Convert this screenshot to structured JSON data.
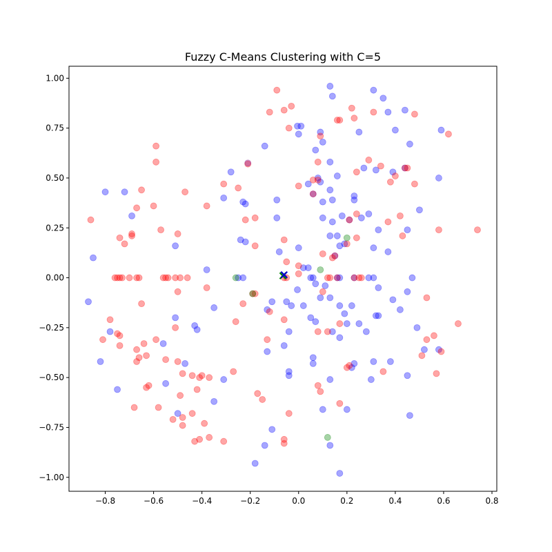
{
  "chart_data": {
    "type": "scatter",
    "title": "Fuzzy C-Means Clustering with C=5",
    "xlabel": "",
    "ylabel": "",
    "xlim": [
      -0.95,
      0.82
    ],
    "ylim": [
      -1.07,
      1.06
    ],
    "xticks": [
      -0.8,
      -0.6,
      -0.4,
      -0.2,
      0.0,
      0.2,
      0.4,
      0.6,
      0.8
    ],
    "yticks": [
      -1.0,
      -0.75,
      -0.5,
      -0.25,
      0.0,
      0.25,
      0.5,
      0.75,
      1.0
    ],
    "xtick_labels": [
      "−0.8",
      "−0.6",
      "−0.4",
      "−0.2",
      "0.0",
      "0.2",
      "0.4",
      "0.6",
      "0.8"
    ],
    "ytick_labels": [
      "−1.00",
      "−0.75",
      "−0.50",
      "−0.25",
      "0.00",
      "0.25",
      "0.50",
      "0.75",
      "1.00"
    ],
    "grid": false,
    "legend": "none",
    "series": [
      {
        "color": "#0000ff",
        "alpha": 0.35,
        "points": [
          [
            0.13,
            0.96
          ],
          [
            0.31,
            0.94
          ],
          [
            0.35,
            0.9
          ],
          [
            0.14,
            0.91
          ],
          [
            0.44,
            0.84
          ],
          [
            0.37,
            0.83
          ],
          [
            -0.005,
            0.76
          ],
          [
            0.01,
            0.76
          ],
          [
            0.09,
            0.73
          ],
          [
            0.25,
            0.73
          ],
          [
            0.4,
            0.74
          ],
          [
            0.59,
            0.74
          ],
          [
            0.0,
            0.72
          ],
          [
            0.1,
            0.68
          ],
          [
            0.46,
            0.67
          ],
          [
            -0.14,
            0.66
          ],
          [
            0.07,
            0.64
          ],
          [
            0.13,
            0.58
          ],
          [
            -0.28,
            0.53
          ],
          [
            0.27,
            0.55
          ],
          [
            0.32,
            0.54
          ],
          [
            0.39,
            0.53
          ],
          [
            0.44,
            0.55
          ],
          [
            0.58,
            0.5
          ],
          [
            0.08,
            0.5
          ],
          [
            0.16,
            0.51
          ],
          [
            0.04,
            0.47
          ],
          [
            0.09,
            0.48
          ],
          [
            0.06,
            0.42
          ],
          [
            0.13,
            0.44
          ],
          [
            -0.8,
            0.43
          ],
          [
            -0.72,
            0.43
          ],
          [
            0.23,
            0.41
          ],
          [
            0.23,
            0.39
          ],
          [
            -0.09,
            0.39
          ],
          [
            -0.31,
            0.4
          ],
          [
            0.14,
            0.39
          ],
          [
            0.1,
            0.38
          ],
          [
            -0.23,
            0.38
          ],
          [
            -0.22,
            0.37
          ],
          [
            0.5,
            0.34
          ],
          [
            0.29,
            0.32
          ],
          [
            -0.69,
            0.31
          ],
          [
            0.18,
            0.31
          ],
          [
            0.26,
            0.3
          ],
          [
            -0.09,
            0.3
          ],
          [
            0.1,
            0.3
          ],
          [
            0.14,
            0.28
          ],
          [
            0.33,
            0.24
          ],
          [
            0.45,
            0.24
          ],
          [
            0.13,
            0.21
          ],
          [
            0.16,
            0.21
          ],
          [
            -0.24,
            0.19
          ],
          [
            -0.22,
            0.18
          ],
          [
            0.17,
            0.16
          ],
          [
            0.19,
            0.17
          ],
          [
            -0.51,
            0.16
          ],
          [
            0.0,
            0.15
          ],
          [
            0.31,
            0.15
          ],
          [
            0.37,
            0.13
          ],
          [
            -0.08,
            0.13
          ],
          [
            0.15,
            0.11
          ],
          [
            -0.85,
            0.1
          ],
          [
            0.02,
            0.05
          ],
          [
            0.04,
            0.05
          ],
          [
            -0.38,
            0.04
          ],
          [
            0.05,
            0.0
          ],
          [
            0.06,
            0.0
          ],
          [
            0.16,
            0.0
          ],
          [
            0.17,
            0.0
          ],
          [
            0.23,
            0.0
          ],
          [
            0.29,
            0.0
          ],
          [
            0.31,
            0.0
          ],
          [
            0.47,
            0.0
          ],
          [
            0.07,
            -0.03
          ],
          [
            0.11,
            -0.04
          ],
          [
            0.33,
            -0.05
          ],
          [
            -0.005,
            -0.06
          ],
          [
            0.45,
            -0.07
          ],
          [
            0.13,
            -0.1
          ],
          [
            0.09,
            -0.1
          ],
          [
            0.39,
            -0.11
          ],
          [
            -0.11,
            -0.12
          ],
          [
            -0.05,
            -0.12
          ],
          [
            0.17,
            -0.14
          ],
          [
            0.22,
            -0.14
          ],
          [
            0.02,
            -0.14
          ],
          [
            -0.03,
            -0.14
          ],
          [
            -0.35,
            -0.15
          ],
          [
            0.42,
            -0.16
          ],
          [
            -0.13,
            -0.16
          ],
          [
            0.19,
            -0.18
          ],
          [
            0.32,
            -0.19
          ],
          [
            0.33,
            -0.19
          ],
          [
            -0.51,
            -0.2
          ],
          [
            0.05,
            -0.2
          ],
          [
            -0.87,
            -0.12
          ],
          [
            0.07,
            -0.22
          ],
          [
            0.2,
            -0.23
          ],
          [
            0.25,
            -0.23
          ],
          [
            -0.43,
            -0.24
          ],
          [
            -0.42,
            -0.26
          ],
          [
            -0.78,
            -0.27
          ],
          [
            0.49,
            -0.25
          ],
          [
            0.14,
            -0.27
          ],
          [
            0.28,
            -0.27
          ],
          [
            -0.04,
            -0.27
          ],
          [
            0.17,
            -0.3
          ],
          [
            -0.56,
            -0.33
          ],
          [
            -0.06,
            -0.34
          ],
          [
            0.52,
            -0.36
          ],
          [
            -0.13,
            -0.37
          ],
          [
            0.06,
            -0.4
          ],
          [
            0.06,
            -0.43
          ],
          [
            -0.82,
            -0.42
          ],
          [
            0.31,
            -0.42
          ],
          [
            0.38,
            -0.42
          ],
          [
            -0.47,
            -0.43
          ],
          [
            0.23,
            -0.43
          ],
          [
            0.22,
            -0.45
          ],
          [
            -0.04,
            -0.47
          ],
          [
            -0.04,
            -0.49
          ],
          [
            0.45,
            -0.49
          ],
          [
            0.13,
            -0.51
          ],
          [
            0.3,
            -0.51
          ],
          [
            -0.31,
            -0.51
          ],
          [
            -0.55,
            -0.53
          ],
          [
            -0.75,
            -0.56
          ],
          [
            -0.35,
            -0.62
          ],
          [
            0.1,
            -0.66
          ],
          [
            0.2,
            -0.66
          ],
          [
            -0.5,
            -0.68
          ],
          [
            0.46,
            -0.69
          ],
          [
            -0.11,
            -0.76
          ],
          [
            -0.14,
            -0.84
          ],
          [
            0.13,
            -0.84
          ],
          [
            -0.18,
            -0.93
          ],
          [
            0.17,
            -0.98
          ],
          [
            0.58,
            -0.36
          ],
          [
            -0.23,
            0.0
          ],
          [
            -0.25,
            0.0
          ]
        ]
      },
      {
        "color": "#ff0000",
        "alpha": 0.35,
        "points": [
          [
            -0.09,
            0.94
          ],
          [
            -0.03,
            0.86
          ],
          [
            -0.06,
            0.84
          ],
          [
            -0.12,
            0.83
          ],
          [
            0.22,
            0.85
          ],
          [
            0.31,
            0.83
          ],
          [
            0.48,
            0.82
          ],
          [
            0.16,
            0.79
          ],
          [
            0.17,
            0.79
          ],
          [
            0.23,
            0.8
          ],
          [
            -0.04,
            0.75
          ],
          [
            0.62,
            0.72
          ],
          [
            0.09,
            0.71
          ],
          [
            -0.59,
            0.66
          ],
          [
            0.08,
            0.58
          ],
          [
            -0.59,
            0.58
          ],
          [
            -0.21,
            0.57
          ],
          [
            0.29,
            0.59
          ],
          [
            0.34,
            0.56
          ],
          [
            0.45,
            0.55
          ],
          [
            0.24,
            0.53
          ],
          [
            0.06,
            0.49
          ],
          [
            0.08,
            0.49
          ],
          [
            0.38,
            0.48
          ],
          [
            -0.31,
            0.47
          ],
          [
            0.0,
            0.46
          ],
          [
            0.48,
            0.47
          ],
          [
            -0.25,
            0.45
          ],
          [
            -0.65,
            0.44
          ],
          [
            -0.47,
            0.43
          ],
          [
            0.06,
            0.42
          ],
          [
            0.4,
            0.51
          ],
          [
            -0.67,
            0.35
          ],
          [
            -0.6,
            0.36
          ],
          [
            -0.38,
            0.36
          ],
          [
            0.24,
            0.32
          ],
          [
            0.42,
            0.31
          ],
          [
            -0.86,
            0.29
          ],
          [
            -0.22,
            0.29
          ],
          [
            -0.18,
            0.3
          ],
          [
            0.21,
            0.29
          ],
          [
            0.37,
            0.28
          ],
          [
            -0.57,
            0.24
          ],
          [
            0.58,
            0.24
          ],
          [
            0.74,
            0.24
          ],
          [
            -0.5,
            0.22
          ],
          [
            -0.69,
            0.22
          ],
          [
            -0.69,
            0.21
          ],
          [
            0.43,
            0.21
          ],
          [
            -0.74,
            0.2
          ],
          [
            0.24,
            0.2
          ],
          [
            -0.72,
            0.17
          ],
          [
            -0.18,
            0.16
          ],
          [
            -0.06,
            0.19
          ],
          [
            0.2,
            0.17
          ],
          [
            0.1,
            0.12
          ],
          [
            0.14,
            0.1
          ],
          [
            0.15,
            0.11
          ],
          [
            -0.05,
            0.08
          ],
          [
            0.0,
            0.06
          ],
          [
            -0.76,
            0.0
          ],
          [
            -0.75,
            0.0
          ],
          [
            -0.74,
            0.0
          ],
          [
            -0.73,
            0.0
          ],
          [
            -0.7,
            0.0
          ],
          [
            -0.67,
            0.0
          ],
          [
            -0.66,
            0.0
          ],
          [
            -0.56,
            0.0
          ],
          [
            -0.55,
            0.0
          ],
          [
            -0.54,
            0.0
          ],
          [
            -0.51,
            0.0
          ],
          [
            -0.49,
            0.0
          ],
          [
            -0.46,
            0.0
          ],
          [
            0.12,
            0.0
          ],
          [
            0.13,
            0.0
          ],
          [
            0.23,
            0.0
          ],
          [
            0.25,
            0.0
          ],
          [
            0.26,
            0.0
          ],
          [
            -0.06,
            0.0
          ],
          [
            -0.05,
            0.0
          ],
          [
            0.0,
            0.02
          ],
          [
            -0.38,
            -0.05
          ],
          [
            -0.5,
            -0.07
          ],
          [
            0.1,
            -0.07
          ],
          [
            -0.19,
            -0.08
          ],
          [
            -0.18,
            -0.08
          ],
          [
            -0.65,
            -0.13
          ],
          [
            -0.23,
            -0.13
          ],
          [
            -0.12,
            -0.17
          ],
          [
            0.53,
            -0.1
          ],
          [
            -0.78,
            -0.21
          ],
          [
            -0.06,
            -0.21
          ],
          [
            -0.26,
            -0.22
          ],
          [
            0.17,
            -0.23
          ],
          [
            0.66,
            -0.23
          ],
          [
            -0.51,
            -0.25
          ],
          [
            -0.75,
            -0.28
          ],
          [
            -0.74,
            -0.29
          ],
          [
            0.08,
            -0.27
          ],
          [
            0.12,
            -0.27
          ],
          [
            0.56,
            -0.29
          ],
          [
            -0.81,
            -0.31
          ],
          [
            -0.59,
            -0.31
          ],
          [
            -0.13,
            -0.31
          ],
          [
            0.53,
            -0.31
          ],
          [
            -0.64,
            -0.33
          ],
          [
            -0.74,
            -0.34
          ],
          [
            -0.67,
            -0.36
          ],
          [
            0.59,
            -0.37
          ],
          [
            0.51,
            -0.39
          ],
          [
            -0.63,
            -0.39
          ],
          [
            -0.66,
            -0.4
          ],
          [
            -0.55,
            -0.41
          ],
          [
            -0.67,
            -0.42
          ],
          [
            -0.5,
            -0.42
          ],
          [
            -0.27,
            -0.47
          ],
          [
            0.35,
            -0.47
          ],
          [
            -0.48,
            -0.48
          ],
          [
            0.57,
            -0.48
          ],
          [
            -0.44,
            -0.49
          ],
          [
            -0.4,
            -0.49
          ],
          [
            -0.41,
            -0.5
          ],
          [
            -0.37,
            -0.5
          ],
          [
            0.2,
            -0.45
          ],
          [
            0.21,
            -0.44
          ],
          [
            0.08,
            -0.54
          ],
          [
            -0.62,
            -0.54
          ],
          [
            -0.63,
            -0.55
          ],
          [
            -0.42,
            -0.56
          ],
          [
            0.09,
            -0.57
          ],
          [
            -0.17,
            -0.58
          ],
          [
            -0.49,
            -0.59
          ],
          [
            -0.15,
            -0.61
          ],
          [
            -0.58,
            -0.65
          ],
          [
            -0.68,
            -0.65
          ],
          [
            -0.44,
            -0.68
          ],
          [
            -0.04,
            -0.68
          ],
          [
            0.17,
            -0.63
          ],
          [
            -0.48,
            -0.7
          ],
          [
            -0.52,
            -0.71
          ],
          [
            -0.39,
            -0.73
          ],
          [
            -0.48,
            -0.74
          ],
          [
            -0.37,
            -0.8
          ],
          [
            -0.41,
            -0.81
          ],
          [
            -0.43,
            -0.82
          ],
          [
            -0.31,
            -0.82
          ],
          [
            -0.06,
            -0.81
          ],
          [
            -0.06,
            -0.83
          ],
          [
            0.44,
            0.55
          ],
          [
            0.16,
            0.0
          ]
        ]
      },
      {
        "color": "#008000",
        "alpha": 0.35,
        "points": [
          [
            0.2,
            0.2
          ],
          [
            0.09,
            0.04
          ],
          [
            -0.26,
            0.0
          ],
          [
            -0.19,
            -0.08
          ],
          [
            0.12,
            -0.8
          ]
        ]
      },
      {
        "color": "#800080",
        "alpha": 0.35,
        "points": [
          [
            -0.21,
            0.575
          ],
          [
            0.21,
            0.29
          ]
        ]
      }
    ],
    "centroids": [
      {
        "x": -0.065,
        "y": 0.01,
        "color": "#008000"
      },
      {
        "x": -0.06,
        "y": 0.015,
        "color": "#0000cc"
      }
    ]
  }
}
